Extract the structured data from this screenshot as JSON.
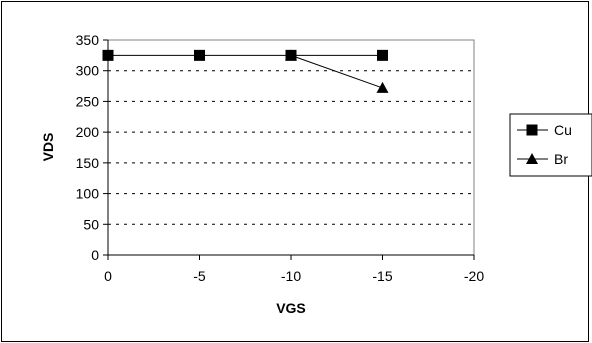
{
  "chart_data": {
    "type": "line",
    "title": "",
    "xlabel": "VGS",
    "ylabel": "VDS",
    "x_ticks": [
      "0",
      "-5",
      "-10",
      "-15",
      "-20"
    ],
    "y_ticks": [
      "0",
      "50",
      "100",
      "150",
      "200",
      "250",
      "300",
      "350"
    ],
    "xlim": [
      0,
      -20
    ],
    "ylim": [
      0,
      350
    ],
    "grid": {
      "horizontal": "dashed",
      "vertical": false
    },
    "legend": "right",
    "series": [
      {
        "name": "Cu",
        "marker": "square",
        "x": [
          0,
          -5,
          -10,
          -15
        ],
        "y": [
          325,
          325,
          325,
          325
        ]
      },
      {
        "name": "Br",
        "marker": "triangle",
        "x": [
          -10,
          -15
        ],
        "y": [
          325,
          272
        ]
      }
    ]
  }
}
